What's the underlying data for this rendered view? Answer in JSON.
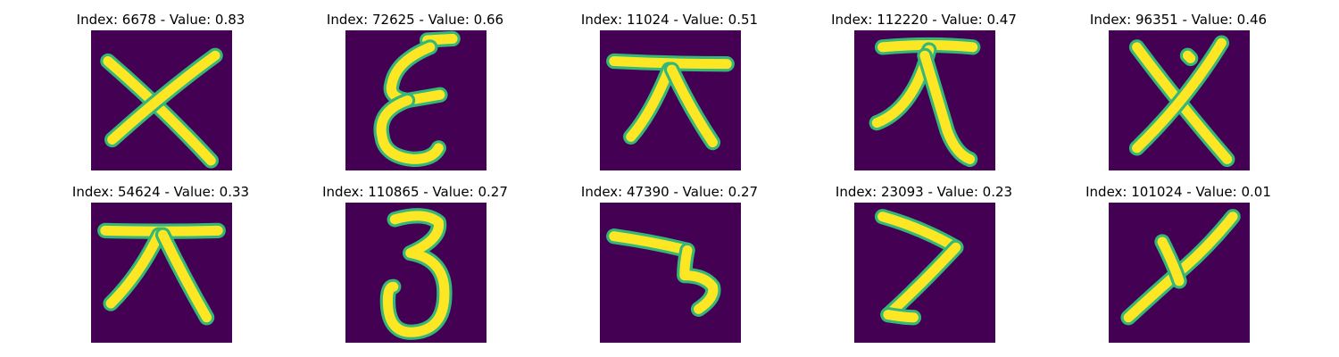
{
  "panel_bg": "#440154",
  "stroke_color": "#fde725",
  "edge_color": "#35b779",
  "figures": [
    {
      "title": "Index: 6678 - Value: 0.83",
      "glyph": "cross"
    },
    {
      "title": "Index: 72625 - Value: 0.66",
      "glyph": "epsilon-like character"
    },
    {
      "title": "Index: 11024 - Value: 0.51",
      "glyph": "top-bar with two legs"
    },
    {
      "title": "Index: 112220 - Value: 0.47",
      "glyph": "top-bar with two legs"
    },
    {
      "title": "Index: 96351 - Value: 0.46",
      "glyph": "cross"
    },
    {
      "title": "Index: 54624 - Value: 0.33",
      "glyph": "top-bar with two legs"
    },
    {
      "title": "Index: 110865 - Value: 0.27",
      "glyph": "digit-three-like character"
    },
    {
      "title": "Index: 47390 - Value: 0.27",
      "glyph": "bar with hook"
    },
    {
      "title": "Index: 23093 - Value: 0.23",
      "glyph": "z-like stroke"
    },
    {
      "title": "Index: 101024 - Value: 0.01",
      "glyph": "curved cross stroke"
    }
  ]
}
